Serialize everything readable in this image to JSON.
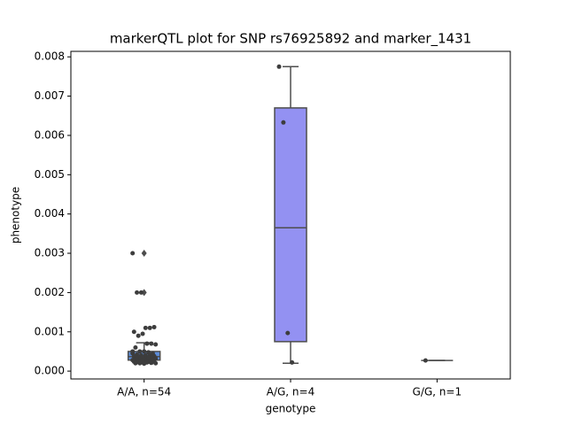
{
  "chart_data": {
    "type": "box",
    "title": "markerQTL plot for SNP rs76925892 and marker_1431",
    "xlabel": "genotype",
    "ylabel": "phenotype",
    "categories": [
      "A/A, n=54",
      "A/G, n=4",
      "G/G, n=1"
    ],
    "ylim": [
      -0.0002,
      0.00814
    ],
    "yticks": [
      {
        "value": 0,
        "label": "0.000"
      },
      {
        "value": 0.001,
        "label": "0.001"
      },
      {
        "value": 0.002,
        "label": "0.002"
      },
      {
        "value": 0.003,
        "label": "0.003"
      },
      {
        "value": 0.004,
        "label": "0.004"
      },
      {
        "value": 0.005,
        "label": "0.005"
      },
      {
        "value": 0.006,
        "label": "0.006"
      },
      {
        "value": 0.007,
        "label": "0.007"
      },
      {
        "value": 0.008,
        "label": "0.008"
      }
    ],
    "boxes": [
      {
        "whislo": 0.0002,
        "q1": 0.00028,
        "med": 0.00037,
        "q3": 0.0005,
        "whishi": 0.00072,
        "color": "#5b8bd8"
      },
      {
        "whislo": 0.0002,
        "q1": 0.00075,
        "med": 0.00365,
        "q3": 0.0067,
        "whishi": 0.00775,
        "color": "#9391f2"
      },
      {
        "whislo": 0.00027,
        "q1": 0.00027,
        "med": 0.00027,
        "q3": 0.00027,
        "whishi": 0.00027,
        "color": "#8fce8f"
      }
    ],
    "fliers": [
      [
        0.003,
        0.002
      ],
      [],
      []
    ],
    "points": [
      [
        0.003,
        0.002,
        0.002,
        0.0011,
        0.0011,
        0.00112,
        0.001,
        0.0009,
        0.00095,
        0.0007,
        0.0007,
        0.00068,
        0.0006,
        0.0005,
        0.0005,
        0.00048,
        0.00045,
        0.00045,
        0.00042,
        0.0004,
        0.0004,
        0.0004,
        0.00038,
        0.00037,
        0.00035,
        0.00035,
        0.00034,
        0.00033,
        0.00032,
        0.0003,
        0.0003,
        0.0003,
        0.00029,
        0.00028,
        0.00028,
        0.00027,
        0.00026,
        0.00025,
        0.00025,
        0.00024,
        0.00024,
        0.00023,
        0.00022,
        0.00022,
        0.00021,
        0.0002,
        0.0002,
        0.0002,
        0.00019,
        0.00035,
        0.0004,
        0.0005,
        0.00031,
        0.00026
      ],
      [
        0.00775,
        0.00633,
        0.00097,
        0.00022
      ],
      [
        0.00027
      ]
    ],
    "point_color": "#3d3d3d"
  }
}
